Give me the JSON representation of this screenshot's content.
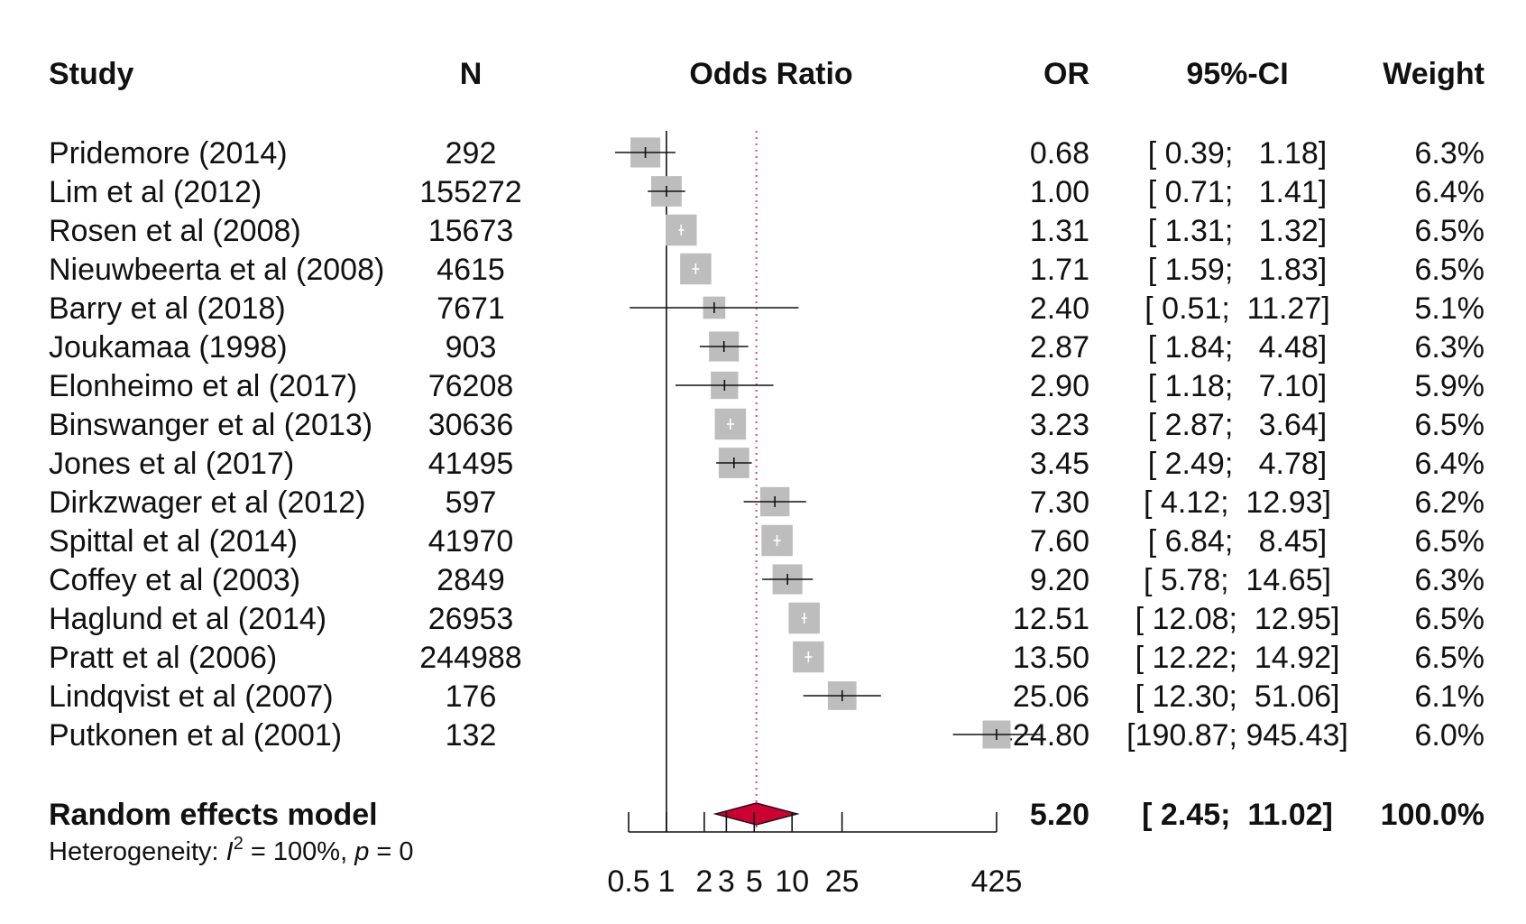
{
  "chart_data": {
    "type": "forest",
    "columns": {
      "study": "Study",
      "n": "N",
      "plot": "Odds Ratio",
      "or": "OR",
      "ci": "95%-CI",
      "weight": "Weight"
    },
    "xscale": "log",
    "xlim": [
      0.5,
      425
    ],
    "ticks": [
      0.5,
      1,
      2,
      3,
      5,
      10,
      25,
      425
    ],
    "tick_labels": [
      "0.5",
      "1",
      "2",
      "3",
      "5",
      "10",
      "25",
      "425"
    ],
    "reference_line": 1,
    "pooled_line": 5.2,
    "colors": {
      "box": "#bdbdbd",
      "diamond": "#cc0033",
      "pooled_line": "#e0457b",
      "line": "#111111"
    },
    "studies": [
      {
        "name": "Pridemore (2014)",
        "n": "292",
        "or": 0.68,
        "lo": 0.39,
        "hi": 1.18,
        "or_text": "0.68",
        "ci_text": "[ 0.39;   1.18]",
        "weight": "6.3%"
      },
      {
        "name": "Lim et al (2012)",
        "n": "155272",
        "or": 1.0,
        "lo": 0.71,
        "hi": 1.41,
        "or_text": "1.00",
        "ci_text": "[ 0.71;   1.41]",
        "weight": "6.4%"
      },
      {
        "name": "Rosen et al (2008)",
        "n": "15673",
        "or": 1.31,
        "lo": 1.31,
        "hi": 1.32,
        "or_text": "1.31",
        "ci_text": "[ 1.31;   1.32]",
        "weight": "6.5%"
      },
      {
        "name": "Nieuwbeerta et al (2008)",
        "n": "4615",
        "or": 1.71,
        "lo": 1.59,
        "hi": 1.83,
        "or_text": "1.71",
        "ci_text": "[ 1.59;   1.83]",
        "weight": "6.5%"
      },
      {
        "name": "Barry et al (2018)",
        "n": "7671",
        "or": 2.4,
        "lo": 0.51,
        "hi": 11.27,
        "or_text": "2.40",
        "ci_text": "[ 0.51;  11.27]",
        "weight": "5.1%"
      },
      {
        "name": "Joukamaa (1998)",
        "n": "903",
        "or": 2.87,
        "lo": 1.84,
        "hi": 4.48,
        "or_text": "2.87",
        "ci_text": "[ 1.84;   4.48]",
        "weight": "6.3%"
      },
      {
        "name": "Elonheimo et al (2017)",
        "n": "76208",
        "or": 2.9,
        "lo": 1.18,
        "hi": 7.1,
        "or_text": "2.90",
        "ci_text": "[ 1.18;   7.10]",
        "weight": "5.9%"
      },
      {
        "name": "Binswanger et al (2013)",
        "n": "30636",
        "or": 3.23,
        "lo": 2.87,
        "hi": 3.64,
        "or_text": "3.23",
        "ci_text": "[ 2.87;   3.64]",
        "weight": "6.5%"
      },
      {
        "name": "Jones et al (2017)",
        "n": "41495",
        "or": 3.45,
        "lo": 2.49,
        "hi": 4.78,
        "or_text": "3.45",
        "ci_text": "[ 2.49;   4.78]",
        "weight": "6.4%"
      },
      {
        "name": "Dirkzwager et al (2012)",
        "n": "597",
        "or": 7.3,
        "lo": 4.12,
        "hi": 12.93,
        "or_text": "7.30",
        "ci_text": "[ 4.12;  12.93]",
        "weight": "6.2%"
      },
      {
        "name": "Spittal et al (2014)",
        "n": "41970",
        "or": 7.6,
        "lo": 6.84,
        "hi": 8.45,
        "or_text": "7.60",
        "ci_text": "[ 6.84;   8.45]",
        "weight": "6.5%"
      },
      {
        "name": "Coffey et al (2003)",
        "n": "2849",
        "or": 9.2,
        "lo": 5.78,
        "hi": 14.65,
        "or_text": "9.20",
        "ci_text": "[ 5.78;  14.65]",
        "weight": "6.3%"
      },
      {
        "name": "Haglund et al (2014)",
        "n": "26953",
        "or": 12.51,
        "lo": 12.08,
        "hi": 12.95,
        "or_text": "12.51",
        "ci_text": "[ 12.08;  12.95]",
        "weight": "6.5%"
      },
      {
        "name": "Pratt et al (2006)",
        "n": "244988",
        "or": 13.5,
        "lo": 12.22,
        "hi": 14.92,
        "or_text": "13.50",
        "ci_text": "[ 12.22;  14.92]",
        "weight": "6.5%"
      },
      {
        "name": "Lindqvist et al (2007)",
        "n": "176",
        "or": 25.06,
        "lo": 12.3,
        "hi": 51.06,
        "or_text": "25.06",
        "ci_text": "[ 12.30;  51.06]",
        "weight": "6.1%"
      },
      {
        "name": "Putkonen et al (2001)",
        "n": "132",
        "or": 424.8,
        "lo": 190.87,
        "hi": 945.43,
        "or_text": "424.80",
        "ci_text": "[190.87; 945.43]",
        "weight": "6.0%"
      }
    ],
    "pooled": {
      "name": "Random effects model",
      "or": 5.2,
      "lo": 2.45,
      "hi": 11.02,
      "or_text": "5.20",
      "ci_text": "[ 2.45;  11.02]",
      "weight": "100.0%"
    },
    "heterogeneity": {
      "prefix": "Heterogeneity: ",
      "stat": "I",
      "sup": "2",
      "mid": " = 100%, ",
      "p": "p",
      "tail": " = 0"
    }
  }
}
